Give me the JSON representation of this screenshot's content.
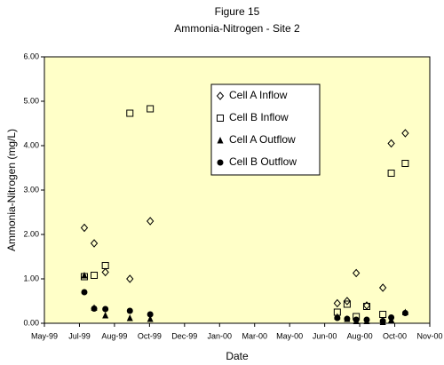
{
  "chart_data": {
    "type": "scatter",
    "title": "Figure 15",
    "subtitle": "Ammonia-Nitrogen - Site 2",
    "x_label": "Date",
    "y_label": "Ammonia-Nitrogen (mg/L)",
    "x": [
      36357,
      36371,
      36387,
      36422,
      36451,
      36718,
      36732,
      36745,
      36760,
      36783,
      36795,
      36815
    ],
    "series": [
      {
        "name": "Cell A Inflow",
        "color": "#000000",
        "marker": "diamond",
        "values": [
          2.15,
          1.8,
          1.15,
          1.0,
          2.3,
          0.45,
          0.5,
          1.13,
          0.4,
          0.8,
          4.05,
          4.28
        ]
      },
      {
        "name": "Cell B Inflow",
        "color": "#000000",
        "marker": "square",
        "values": [
          1.05,
          1.08,
          1.3,
          4.73,
          4.83,
          0.25,
          0.43,
          0.15,
          0.38,
          0.2,
          3.38,
          3.6
        ]
      },
      {
        "name": "Cell A Outflow",
        "color": "#000000",
        "marker": "triangle",
        "values": [
          1.08,
          0.35,
          0.18,
          0.12,
          0.1,
          0.15,
          0.1,
          0.05,
          0.05,
          0.03,
          0.08,
          0.25
        ]
      },
      {
        "name": "Cell B Outflow",
        "color": "#000000",
        "marker": "circle",
        "values": [
          0.7,
          0.33,
          0.32,
          0.28,
          0.2,
          0.12,
          0.1,
          0.08,
          0.08,
          0.05,
          0.13,
          0.23
        ]
      }
    ],
    "xlim": [
      36300,
      36850
    ],
    "xticks": [
      {
        "value": 36300,
        "label": "May-99"
      },
      {
        "value": 36350,
        "label": "Jul-99"
      },
      {
        "value": 36400,
        "label": "Aug-99"
      },
      {
        "value": 36450,
        "label": "Oct-99"
      },
      {
        "value": 36500,
        "label": "Dec-99"
      },
      {
        "value": 36550,
        "label": "Jan-00"
      },
      {
        "value": 36600,
        "label": "Mar-00"
      },
      {
        "value": 36650,
        "label": "May-00"
      },
      {
        "value": 36700,
        "label": "Jun-00"
      },
      {
        "value": 36750,
        "label": "Aug-00"
      },
      {
        "value": 36800,
        "label": "Oct-00"
      },
      {
        "value": 36850,
        "label": "Nov-00"
      }
    ],
    "ylim": [
      0,
      6
    ],
    "yticks": [
      {
        "value": 0,
        "label": "0.00"
      },
      {
        "value": 1,
        "label": "1.00"
      },
      {
        "value": 2,
        "label": "2.00"
      },
      {
        "value": 3,
        "label": "3.00"
      },
      {
        "value": 4,
        "label": "4.00"
      },
      {
        "value": 5,
        "label": "5.00"
      },
      {
        "value": 6,
        "label": "6.00"
      }
    ],
    "grid": false,
    "plot_background": "#ffffc8"
  }
}
